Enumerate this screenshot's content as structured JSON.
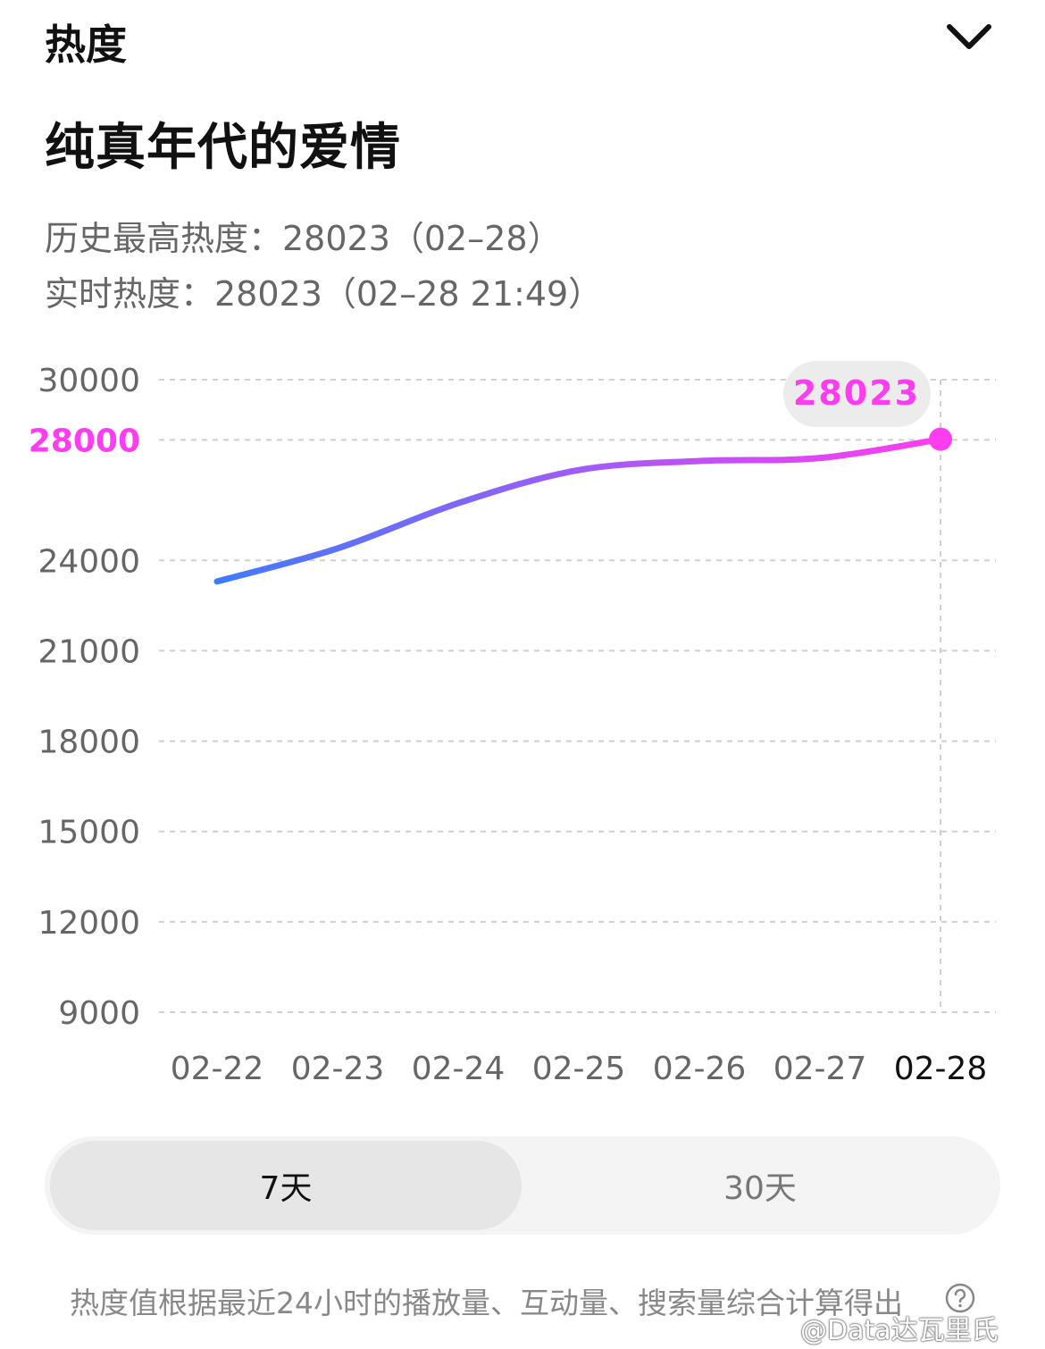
{
  "header": {
    "title": "热度"
  },
  "show": {
    "title": "纯真年代的爱情"
  },
  "stats": {
    "peak": "历史最高热度：28023（02–28）",
    "realtime": "实时热度：28023（02–28 21:49）"
  },
  "colors": {
    "accent": "#ff3df0",
    "line_start": "#3f7bff",
    "grid": "#cfcfcf"
  },
  "chart_data": {
    "type": "line",
    "categories": [
      "02-22",
      "02-23",
      "02-24",
      "02-25",
      "02-26",
      "02-27",
      "02-28"
    ],
    "series": [
      {
        "values": [
          23300,
          24400,
          25900,
          27000,
          27300,
          27400,
          28023
        ]
      }
    ],
    "y_ticks": [
      9000,
      12000,
      15000,
      18000,
      21000,
      24000,
      28000,
      30000
    ],
    "highlight": {
      "tick": 28000,
      "category": "02-28",
      "label": "28023"
    },
    "ylim": [
      9000,
      30000
    ],
    "grid": true
  },
  "range_tabs": {
    "tab7": "7天",
    "tab30": "30天",
    "selected": "7天"
  },
  "footer": {
    "note": "热度值根据最近24小时的播放量、互动量、搜索量综合计算得出",
    "help_icon": "question-circle-icon"
  },
  "watermark": "@Data达瓦里氏"
}
